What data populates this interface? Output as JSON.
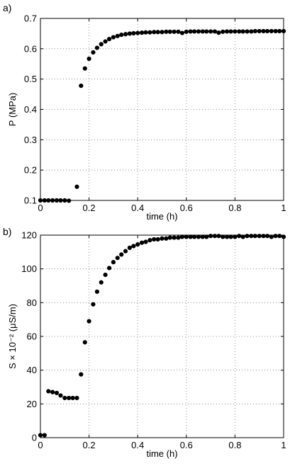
{
  "chart_data": [
    {
      "panel_label": "a)",
      "type": "scatter",
      "xlabel": "time (h)",
      "ylabel": "P (MPa)",
      "xlim": [
        0,
        1
      ],
      "ylim": [
        0.1,
        0.7
      ],
      "xticks": [
        "0",
        "0.2",
        "0.4",
        "0.6",
        "0.8",
        "1"
      ],
      "xtick_values": [
        0,
        0.2,
        0.4,
        0.6,
        0.8,
        1.0
      ],
      "yticks": [
        "0.1",
        "0.2",
        "0.3",
        "0.4",
        "0.5",
        "0.6",
        "0.7"
      ],
      "ytick_values": [
        0.1,
        0.2,
        0.3,
        0.4,
        0.5,
        0.6,
        0.7
      ],
      "grid": "dotted",
      "marker_color": "#000000",
      "series": [
        {
          "x": [
            0.0,
            0.017,
            0.033,
            0.05,
            0.067,
            0.083,
            0.1,
            0.117,
            0.15,
            0.167,
            0.183,
            0.2,
            0.217,
            0.233,
            0.25,
            0.267,
            0.283,
            0.3,
            0.317,
            0.333,
            0.35,
            0.367,
            0.383,
            0.4,
            0.417,
            0.433,
            0.45,
            0.467,
            0.483,
            0.5,
            0.517,
            0.533,
            0.55,
            0.567,
            0.583,
            0.6,
            0.617,
            0.633,
            0.65,
            0.667,
            0.683,
            0.7,
            0.717,
            0.733,
            0.75,
            0.767,
            0.783,
            0.8,
            0.817,
            0.833,
            0.85,
            0.867,
            0.883,
            0.9,
            0.917,
            0.933,
            0.95,
            0.967,
            0.983,
            1.0
          ],
          "y": [
            0.1,
            0.1,
            0.1,
            0.1,
            0.1,
            0.1,
            0.1,
            0.099,
            0.145,
            0.478,
            0.535,
            0.567,
            0.588,
            0.603,
            0.615,
            0.624,
            0.632,
            0.638,
            0.642,
            0.646,
            0.648,
            0.65,
            0.651,
            0.652,
            0.653,
            0.654,
            0.654,
            0.655,
            0.655,
            0.655,
            0.656,
            0.656,
            0.656,
            0.656,
            0.652,
            0.656,
            0.657,
            0.657,
            0.657,
            0.657,
            0.657,
            0.657,
            0.657,
            0.653,
            0.656,
            0.657,
            0.657,
            0.657,
            0.657,
            0.657,
            0.657,
            0.657,
            0.658,
            0.658,
            0.658,
            0.658,
            0.658,
            0.658,
            0.658,
            0.658
          ]
        }
      ]
    },
    {
      "panel_label": "b)",
      "type": "scatter",
      "xlabel": "time (h)",
      "ylabel": "S × 10⁻² (μS/m)",
      "xlim": [
        0,
        1
      ],
      "ylim": [
        0,
        120
      ],
      "xticks": [
        "0",
        "0.2",
        "0.4",
        "0.6",
        "0.8",
        "1"
      ],
      "xtick_values": [
        0,
        0.2,
        0.4,
        0.6,
        0.8,
        1.0
      ],
      "yticks": [
        "0",
        "20",
        "40",
        "60",
        "80",
        "100",
        "120"
      ],
      "ytick_values": [
        0,
        20,
        40,
        60,
        80,
        100,
        120
      ],
      "grid": "dotted",
      "marker_color": "#000000",
      "series": [
        {
          "x": [
            0.0,
            0.017,
            0.033,
            0.05,
            0.067,
            0.083,
            0.1,
            0.117,
            0.133,
            0.15,
            0.167,
            0.183,
            0.2,
            0.217,
            0.233,
            0.25,
            0.267,
            0.283,
            0.3,
            0.317,
            0.333,
            0.35,
            0.367,
            0.383,
            0.4,
            0.417,
            0.433,
            0.45,
            0.467,
            0.483,
            0.5,
            0.517,
            0.533,
            0.55,
            0.567,
            0.583,
            0.6,
            0.617,
            0.633,
            0.65,
            0.667,
            0.683,
            0.7,
            0.717,
            0.733,
            0.75,
            0.767,
            0.783,
            0.8,
            0.817,
            0.833,
            0.85,
            0.867,
            0.883,
            0.9,
            0.917,
            0.933,
            0.95,
            0.967,
            0.983,
            1.0
          ],
          "y": [
            1.5,
            1.5,
            27.5,
            27.0,
            26.5,
            25.0,
            23.5,
            23.5,
            23.5,
            23.5,
            37.5,
            56.5,
            69.0,
            79.0,
            86.5,
            92.0,
            96.5,
            100.5,
            104.0,
            106.5,
            108.5,
            110.5,
            112.5,
            113.5,
            114.5,
            115.5,
            116.0,
            117.0,
            117.5,
            117.5,
            118.0,
            118.0,
            118.5,
            118.5,
            118.5,
            119.0,
            119.0,
            119.0,
            119.0,
            119.0,
            119.0,
            119.0,
            119.5,
            119.5,
            119.5,
            119.0,
            119.0,
            119.0,
            119.0,
            119.5,
            119.0,
            119.5,
            119.5,
            119.5,
            119.5,
            119.5,
            119.5,
            119.0,
            119.5,
            119.5,
            119.0
          ]
        }
      ]
    }
  ]
}
